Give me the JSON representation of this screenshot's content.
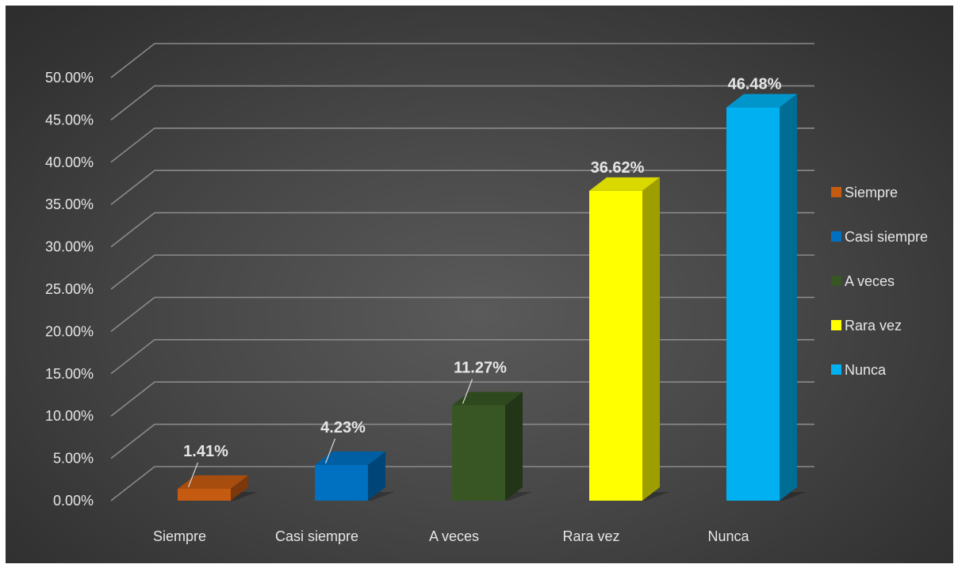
{
  "chart_data": {
    "type": "bar",
    "style": "3d-column",
    "categories": [
      "Siempre",
      "Casi siempre",
      "A veces",
      "Rara vez",
      "Nunca"
    ],
    "values": [
      1.41,
      4.23,
      11.27,
      36.62,
      46.48
    ],
    "value_labels": [
      "1.41%",
      "4.23%",
      "11.27%",
      "36.62%",
      "46.48%"
    ],
    "colors": [
      "#c55a11",
      "#0070c0",
      "#375623",
      "#ffff00",
      "#00b0f0"
    ],
    "y_ticks": [
      "0.00%",
      "5.00%",
      "10.00%",
      "15.00%",
      "20.00%",
      "25.00%",
      "30.00%",
      "35.00%",
      "40.00%",
      "45.00%",
      "50.00%"
    ],
    "ylim": [
      0,
      50
    ],
    "y_unit": "%",
    "grid": true,
    "legend": {
      "position": "right",
      "entries": [
        "Siempre",
        "Casi siempre",
        "A veces",
        "Rara vez",
        "Nunca"
      ]
    },
    "background": "dark-gray-radial"
  }
}
